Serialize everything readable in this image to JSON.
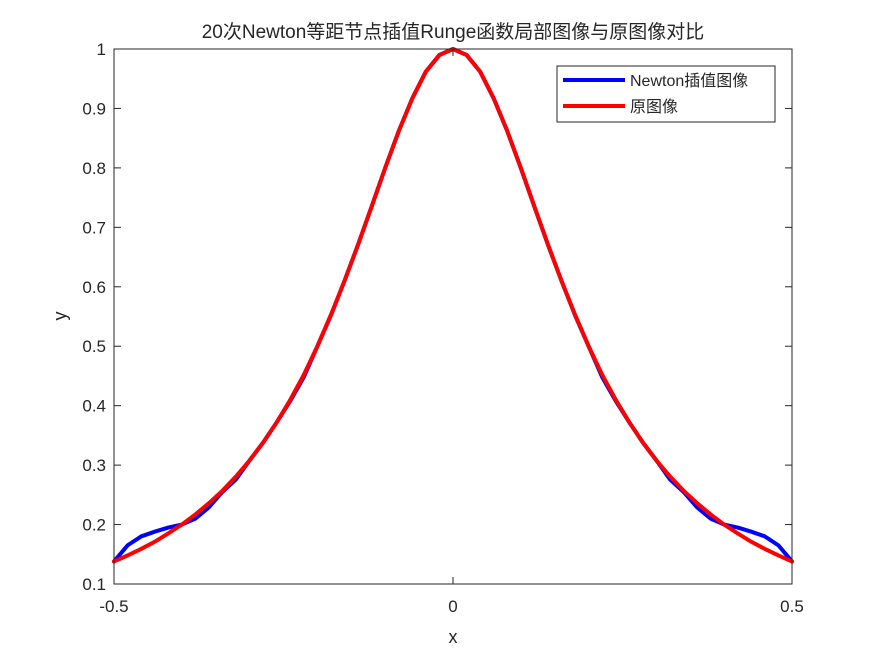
{
  "chart_data": {
    "type": "line",
    "title": "20次Newton等距节点插值Runge函数局部图像与原图像对比",
    "xlabel": "x",
    "ylabel": "y",
    "xlim": [
      -0.5,
      0.5
    ],
    "ylim": [
      0.1,
      1
    ],
    "xticks": [
      -0.5,
      0,
      0.5
    ],
    "xtick_labels": [
      "-0.5",
      "0",
      "0.5"
    ],
    "yticks": [
      0.1,
      0.2,
      0.3,
      0.4,
      0.5,
      0.6,
      0.7,
      0.8,
      0.9,
      1
    ],
    "ytick_labels": [
      "0.1",
      "0.2",
      "0.3",
      "0.4",
      "0.5",
      "0.6",
      "0.7",
      "0.8",
      "0.9",
      "1"
    ],
    "grid": false,
    "legend_position": "top-right",
    "series": [
      {
        "name": "Newton插值图像",
        "color": "#0000ff",
        "x": [
          -0.5,
          -0.48,
          -0.46,
          -0.44,
          -0.42,
          -0.4,
          -0.38,
          -0.36,
          -0.34,
          -0.32,
          -0.3,
          -0.28,
          -0.26,
          -0.24,
          -0.22,
          -0.2,
          -0.18,
          -0.16,
          -0.14,
          -0.12,
          -0.1,
          -0.08,
          -0.06,
          -0.04,
          -0.02,
          0,
          0.02,
          0.04,
          0.06,
          0.08,
          0.1,
          0.12,
          0.14,
          0.16,
          0.18,
          0.2,
          0.22,
          0.24,
          0.26,
          0.28,
          0.3,
          0.32,
          0.34,
          0.36,
          0.38,
          0.4,
          0.42,
          0.44,
          0.46,
          0.48,
          0.5
        ],
        "y": [
          0.138,
          0.165,
          0.18,
          0.188,
          0.195,
          0.2,
          0.21,
          0.229,
          0.255,
          0.276,
          0.308,
          0.338,
          0.372,
          0.408,
          0.448,
          0.5,
          0.552,
          0.61,
          0.671,
          0.735,
          0.8,
          0.862,
          0.917,
          0.962,
          0.99,
          1.0,
          0.99,
          0.962,
          0.917,
          0.862,
          0.8,
          0.735,
          0.671,
          0.61,
          0.552,
          0.5,
          0.448,
          0.408,
          0.372,
          0.338,
          0.308,
          0.276,
          0.255,
          0.229,
          0.21,
          0.2,
          0.195,
          0.188,
          0.18,
          0.165,
          0.138
        ]
      },
      {
        "name": "原图像",
        "color": "#ff0000",
        "x": [
          -0.5,
          -0.48,
          -0.46,
          -0.44,
          -0.42,
          -0.4,
          -0.38,
          -0.36,
          -0.34,
          -0.32,
          -0.3,
          -0.28,
          -0.26,
          -0.24,
          -0.22,
          -0.2,
          -0.18,
          -0.16,
          -0.14,
          -0.12,
          -0.1,
          -0.08,
          -0.06,
          -0.04,
          -0.02,
          0,
          0.02,
          0.04,
          0.06,
          0.08,
          0.1,
          0.12,
          0.14,
          0.16,
          0.18,
          0.2,
          0.22,
          0.24,
          0.26,
          0.28,
          0.3,
          0.32,
          0.34,
          0.36,
          0.38,
          0.4,
          0.42,
          0.44,
          0.46,
          0.48,
          0.5
        ],
        "y": [
          0.138,
          0.148,
          0.159,
          0.171,
          0.185,
          0.2,
          0.217,
          0.236,
          0.257,
          0.281,
          0.308,
          0.338,
          0.372,
          0.41,
          0.452,
          0.5,
          0.553,
          0.61,
          0.671,
          0.735,
          0.8,
          0.862,
          0.917,
          0.962,
          0.99,
          1.0,
          0.99,
          0.962,
          0.917,
          0.862,
          0.8,
          0.735,
          0.671,
          0.61,
          0.553,
          0.5,
          0.452,
          0.41,
          0.372,
          0.338,
          0.308,
          0.281,
          0.257,
          0.236,
          0.217,
          0.2,
          0.185,
          0.171,
          0.159,
          0.148,
          0.138
        ]
      }
    ]
  }
}
